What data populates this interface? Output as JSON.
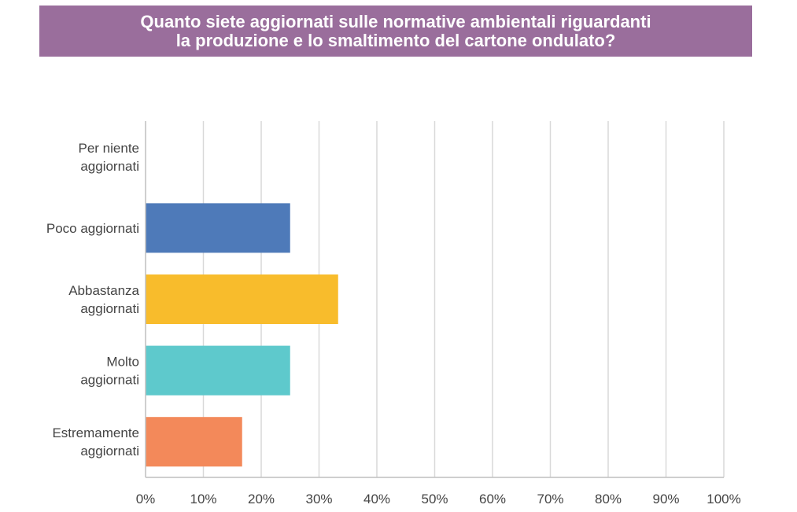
{
  "title_lines": [
    "Quanto siete aggiornati sulle normative ambientali riguardanti",
    "la produzione e lo smaltimento del cartone ondulato?"
  ],
  "chart_data": {
    "type": "bar",
    "orientation": "horizontal",
    "title": "Quanto siete aggiornati sulle normative ambientali riguardanti la produzione e lo smaltimento del cartone ondulato?",
    "categories": [
      [
        "Per niente",
        "aggiornati"
      ],
      [
        "Poco aggiornati"
      ],
      [
        "Abbastanza",
        "aggiornati"
      ],
      [
        "Molto",
        "aggiornati"
      ],
      [
        "Estremamente",
        "aggiornati"
      ]
    ],
    "values": [
      0,
      25,
      33.3,
      25,
      16.7
    ],
    "colors": [
      "#4e7ab9",
      "#4e7ab9",
      "#f8bc2c",
      "#5ec9cc",
      "#f3895a"
    ],
    "xlim": [
      0,
      100
    ],
    "xticks": [
      "0%",
      "10%",
      "20%",
      "30%",
      "40%",
      "50%",
      "60%",
      "70%",
      "80%",
      "90%",
      "100%"
    ],
    "grid": true,
    "legend": "none"
  },
  "colors": {
    "banner": "#9a6e9c",
    "grid": "#d9d9d9",
    "axis": "#bfbfbf"
  }
}
